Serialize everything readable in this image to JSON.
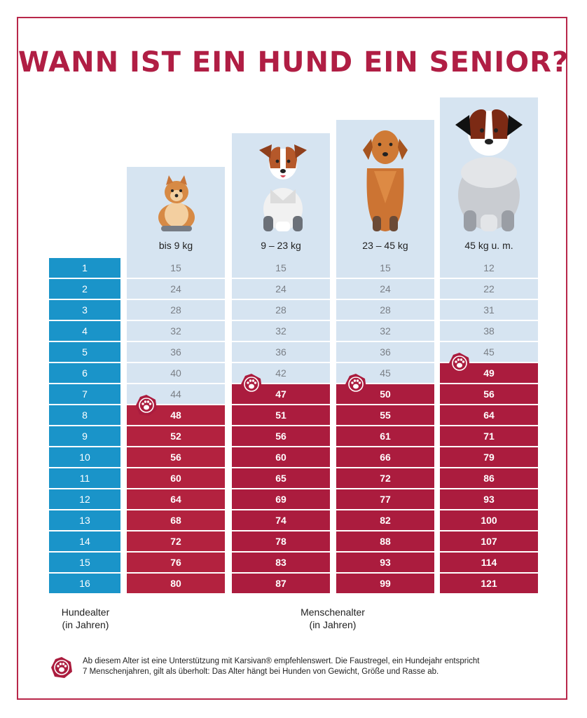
{
  "title": "WANN IST EIN HUND EIN SENIOR?",
  "colors": {
    "accent": "#b01e44",
    "senior": "#ab1c3e",
    "light": "#d6e4f1",
    "dog_age": "#1a94c9"
  },
  "axis": {
    "dog_age_label": "Hundealter",
    "dog_age_unit": "(in Jahren)",
    "human_age_label": "Menschenalter",
    "human_age_unit": "(in Jahren)"
  },
  "footnote": {
    "line1": "Ab diesem Alter ist eine Unterstützung mit Karsivan® empfehlenswert. Die Faustregel, ein Hundejahr entspricht",
    "line2": "7 Menschenjahren, gilt als überholt: Das Alter hängt bei Hunden von Gewicht, Größe und Rasse ab."
  },
  "chart_data": {
    "type": "table",
    "title": "WANN IST EIN HUND EIN SENIOR?",
    "row_header": "Hundealter (in Jahren)",
    "value_header": "Menschenalter (in Jahren)",
    "dog_ages": [
      "1",
      "2",
      "3",
      "4",
      "5",
      "6",
      "7",
      "8",
      "9",
      "10",
      "11",
      "12",
      "13",
      "14",
      "15",
      "16"
    ],
    "series": [
      {
        "name": "bis 9 kg",
        "icon": "pomeranian-icon",
        "senior_from_dog_age": 8,
        "values": [
          15,
          24,
          28,
          32,
          36,
          40,
          44,
          48,
          52,
          56,
          60,
          64,
          68,
          72,
          76,
          80
        ]
      },
      {
        "name": "9 – 23 kg",
        "icon": "terrier-icon",
        "senior_from_dog_age": 7,
        "values": [
          15,
          24,
          28,
          32,
          36,
          42,
          47,
          51,
          56,
          60,
          65,
          69,
          74,
          78,
          83,
          87
        ]
      },
      {
        "name": "23 – 45 kg",
        "icon": "retriever-icon",
        "senior_from_dog_age": 7,
        "values": [
          15,
          24,
          28,
          32,
          36,
          45,
          50,
          55,
          61,
          66,
          72,
          77,
          82,
          88,
          93,
          99
        ]
      },
      {
        "name": "45 kg u. m.",
        "icon": "saint-bernard-icon",
        "senior_from_dog_age": 6,
        "values": [
          12,
          22,
          31,
          38,
          45,
          49,
          56,
          64,
          71,
          79,
          86,
          93,
          100,
          107,
          114,
          121
        ]
      }
    ]
  }
}
